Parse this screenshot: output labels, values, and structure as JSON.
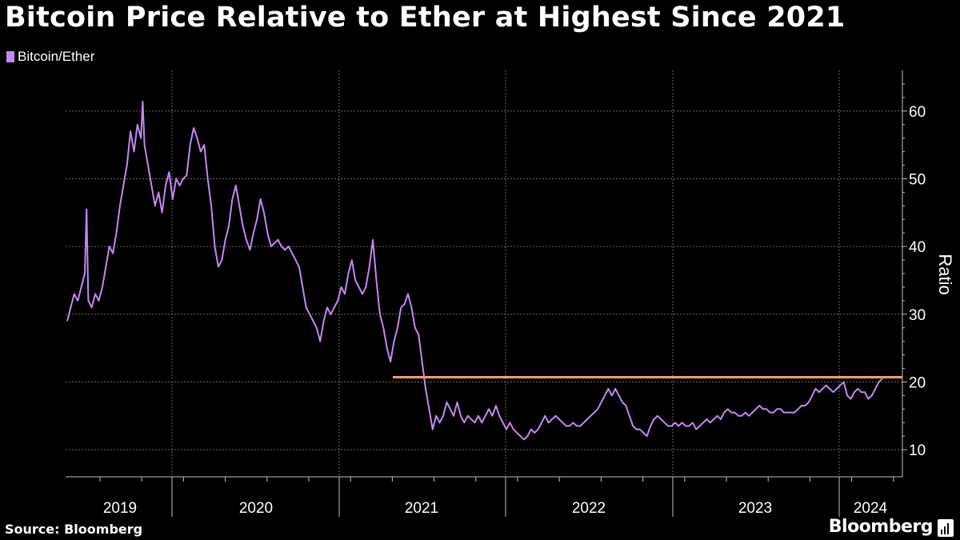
{
  "title": "Bitcoin Price Relative to Ether at Highest Since 2021",
  "legend_label": "Bitcoin/Ether",
  "source": "Source: Bloomberg",
  "brand": "Bloomberg",
  "colors": {
    "series": "#c587f3",
    "reference": "#f0a35a",
    "grid": "#6a6a6a",
    "axis": "#bfbfbf",
    "text": "#ffffff",
    "background": "#000000"
  },
  "chart_data": {
    "type": "line",
    "title": "Bitcoin Price Relative to Ether at Highest Since 2021",
    "ylabel": "Ratio",
    "xlim": [
      2018.72,
      2024.32
    ],
    "ylim": [
      6,
      66
    ],
    "y_ticks": [
      10,
      20,
      30,
      40,
      50,
      60
    ],
    "x_ticks": [
      {
        "label": "2019",
        "pos": 2019.0
      },
      {
        "label": "2020",
        "pos": 2020.0
      },
      {
        "label": "2021",
        "pos": 2021.0
      },
      {
        "label": "2022",
        "pos": 2022.0
      },
      {
        "label": "2023",
        "pos": 2023.0
      },
      {
        "label": "2024",
        "pos": 2024.0
      }
    ],
    "grid": true,
    "legend_position": "top-left",
    "reference_line": {
      "y": 20.7,
      "x_start": 2021.32,
      "x_end": 2024.32
    },
    "series": [
      {
        "name": "Bitcoin/Ether",
        "points": [
          [
            2018.72,
            29
          ],
          [
            2018.74,
            31
          ],
          [
            2018.76,
            33
          ],
          [
            2018.78,
            32
          ],
          [
            2018.8,
            34
          ],
          [
            2018.82,
            36
          ],
          [
            2018.83,
            45.5
          ],
          [
            2018.84,
            32
          ],
          [
            2018.86,
            31
          ],
          [
            2018.88,
            33
          ],
          [
            2018.9,
            32
          ],
          [
            2018.92,
            34
          ],
          [
            2018.94,
            37
          ],
          [
            2018.96,
            40
          ],
          [
            2018.98,
            39
          ],
          [
            2019.0,
            42
          ],
          [
            2019.02,
            46
          ],
          [
            2019.04,
            49
          ],
          [
            2019.06,
            52
          ],
          [
            2019.08,
            57
          ],
          [
            2019.1,
            54
          ],
          [
            2019.12,
            58
          ],
          [
            2019.14,
            56
          ],
          [
            2019.15,
            61.4
          ],
          [
            2019.16,
            55
          ],
          [
            2019.18,
            52
          ],
          [
            2019.2,
            49
          ],
          [
            2019.22,
            46
          ],
          [
            2019.24,
            48
          ],
          [
            2019.26,
            45
          ],
          [
            2019.28,
            49
          ],
          [
            2019.3,
            51
          ],
          [
            2019.32,
            47
          ],
          [
            2019.34,
            50
          ],
          [
            2019.36,
            49
          ],
          [
            2019.38,
            50
          ],
          [
            2019.4,
            50.5
          ],
          [
            2019.42,
            55
          ],
          [
            2019.44,
            57.5
          ],
          [
            2019.46,
            56
          ],
          [
            2019.48,
            54
          ],
          [
            2019.5,
            55
          ],
          [
            2019.52,
            50
          ],
          [
            2019.54,
            46
          ],
          [
            2019.56,
            40
          ],
          [
            2019.58,
            37
          ],
          [
            2019.6,
            38
          ],
          [
            2019.62,
            41
          ],
          [
            2019.64,
            43
          ],
          [
            2019.66,
            47
          ],
          [
            2019.68,
            49
          ],
          [
            2019.7,
            46
          ],
          [
            2019.72,
            43
          ],
          [
            2019.74,
            41
          ],
          [
            2019.76,
            39.5
          ],
          [
            2019.78,
            42
          ],
          [
            2019.8,
            44
          ],
          [
            2019.82,
            47
          ],
          [
            2019.84,
            45
          ],
          [
            2019.86,
            42
          ],
          [
            2019.88,
            40
          ],
          [
            2019.9,
            40.5
          ],
          [
            2019.92,
            41
          ],
          [
            2019.94,
            40
          ],
          [
            2019.96,
            39.5
          ],
          [
            2019.98,
            40
          ],
          [
            2020.0,
            39
          ],
          [
            2020.02,
            38
          ],
          [
            2020.04,
            37
          ],
          [
            2020.06,
            34
          ],
          [
            2020.08,
            31
          ],
          [
            2020.1,
            30
          ],
          [
            2020.12,
            29
          ],
          [
            2020.14,
            28
          ],
          [
            2020.16,
            26
          ],
          [
            2020.18,
            29
          ],
          [
            2020.2,
            31
          ],
          [
            2020.22,
            30
          ],
          [
            2020.24,
            31
          ],
          [
            2020.26,
            32
          ],
          [
            2020.28,
            34
          ],
          [
            2020.3,
            33
          ],
          [
            2020.32,
            36
          ],
          [
            2020.34,
            38
          ],
          [
            2020.36,
            35
          ],
          [
            2020.38,
            34
          ],
          [
            2020.4,
            33
          ],
          [
            2020.42,
            34
          ],
          [
            2020.44,
            37
          ],
          [
            2020.46,
            41
          ],
          [
            2020.48,
            35
          ],
          [
            2020.5,
            30
          ],
          [
            2020.52,
            28
          ],
          [
            2020.54,
            25
          ],
          [
            2020.56,
            23
          ],
          [
            2020.58,
            26
          ],
          [
            2020.6,
            28
          ],
          [
            2020.62,
            31
          ],
          [
            2020.64,
            31.5
          ],
          [
            2020.66,
            33
          ],
          [
            2020.68,
            31
          ],
          [
            2020.7,
            28
          ],
          [
            2020.72,
            27
          ],
          [
            2020.74,
            23
          ],
          [
            2020.76,
            19
          ],
          [
            2020.78,
            16
          ],
          [
            2020.8,
            13
          ],
          [
            2020.82,
            15
          ],
          [
            2020.84,
            14
          ],
          [
            2020.86,
            15
          ],
          [
            2020.88,
            17
          ],
          [
            2020.9,
            16
          ],
          [
            2020.92,
            15
          ],
          [
            2020.94,
            17
          ],
          [
            2020.96,
            15
          ],
          [
            2020.98,
            14
          ],
          [
            2021.0,
            15
          ],
          [
            2021.02,
            14.5
          ],
          [
            2021.04,
            14
          ],
          [
            2021.06,
            15
          ],
          [
            2021.08,
            14
          ],
          [
            2021.1,
            15
          ],
          [
            2021.12,
            16
          ],
          [
            2021.14,
            15
          ],
          [
            2021.16,
            16.5
          ],
          [
            2021.18,
            15
          ],
          [
            2021.2,
            14
          ],
          [
            2021.22,
            13
          ],
          [
            2021.24,
            14
          ],
          [
            2021.26,
            13
          ],
          [
            2021.28,
            12.5
          ],
          [
            2021.3,
            12
          ],
          [
            2021.32,
            11.5
          ],
          [
            2021.34,
            12
          ],
          [
            2021.36,
            13
          ],
          [
            2021.38,
            12.5
          ],
          [
            2021.4,
            13
          ],
          [
            2021.42,
            14
          ],
          [
            2021.44,
            15
          ],
          [
            2021.46,
            14
          ],
          [
            2021.48,
            14.5
          ],
          [
            2021.5,
            15
          ],
          [
            2021.52,
            14.5
          ],
          [
            2021.54,
            14
          ],
          [
            2021.56,
            13.5
          ],
          [
            2021.58,
            13.5
          ],
          [
            2021.6,
            14
          ],
          [
            2021.62,
            13.5
          ],
          [
            2021.64,
            13.5
          ],
          [
            2021.66,
            14
          ],
          [
            2021.68,
            14.5
          ],
          [
            2021.7,
            15
          ],
          [
            2021.72,
            15.5
          ],
          [
            2021.74,
            16
          ],
          [
            2021.76,
            17
          ],
          [
            2021.78,
            18
          ],
          [
            2021.8,
            19
          ],
          [
            2021.82,
            18
          ],
          [
            2021.84,
            19
          ],
          [
            2021.86,
            18
          ],
          [
            2021.88,
            17
          ],
          [
            2021.9,
            16.5
          ],
          [
            2021.92,
            15
          ],
          [
            2021.94,
            13.5
          ],
          [
            2021.96,
            13
          ],
          [
            2021.98,
            13
          ],
          [
            2022.0,
            12.5
          ],
          [
            2022.02,
            12
          ],
          [
            2022.04,
            13.5
          ],
          [
            2022.06,
            14.5
          ],
          [
            2022.08,
            15
          ],
          [
            2022.1,
            14.5
          ],
          [
            2022.12,
            14
          ],
          [
            2022.14,
            13.5
          ],
          [
            2022.16,
            13.5
          ],
          [
            2022.18,
            14
          ],
          [
            2022.2,
            13.5
          ],
          [
            2022.22,
            14
          ],
          [
            2022.24,
            13.5
          ],
          [
            2022.26,
            13.5
          ],
          [
            2022.28,
            14
          ],
          [
            2022.3,
            13
          ],
          [
            2022.32,
            13.5
          ],
          [
            2022.34,
            14
          ],
          [
            2022.36,
            14.5
          ],
          [
            2022.38,
            14
          ],
          [
            2022.4,
            14.5
          ],
          [
            2022.42,
            15
          ],
          [
            2022.44,
            14.5
          ],
          [
            2022.46,
            15.5
          ],
          [
            2022.48,
            16
          ],
          [
            2022.5,
            15.5
          ],
          [
            2022.52,
            15.5
          ],
          [
            2022.54,
            15
          ],
          [
            2022.56,
            15
          ],
          [
            2022.58,
            15.5
          ],
          [
            2022.6,
            15
          ],
          [
            2022.62,
            15.5
          ],
          [
            2022.64,
            16
          ],
          [
            2022.66,
            16.5
          ],
          [
            2022.68,
            16
          ],
          [
            2022.7,
            16
          ],
          [
            2022.72,
            15.5
          ],
          [
            2022.74,
            15.5
          ],
          [
            2022.76,
            16
          ],
          [
            2022.78,
            16
          ],
          [
            2022.8,
            15.5
          ],
          [
            2022.82,
            15.5
          ],
          [
            2022.84,
            15.5
          ],
          [
            2022.86,
            15.5
          ],
          [
            2022.88,
            16
          ],
          [
            2022.9,
            16.5
          ],
          [
            2022.92,
            16.5
          ],
          [
            2022.94,
            17
          ],
          [
            2022.96,
            18
          ],
          [
            2022.98,
            19
          ],
          [
            2023.0,
            18.5
          ],
          [
            2023.02,
            19
          ],
          [
            2023.04,
            19.5
          ],
          [
            2023.06,
            19
          ],
          [
            2023.08,
            18.5
          ],
          [
            2023.1,
            19
          ],
          [
            2023.12,
            19.5
          ],
          [
            2023.14,
            20
          ],
          [
            2023.16,
            18
          ],
          [
            2023.18,
            17.5
          ],
          [
            2023.2,
            18.5
          ],
          [
            2023.22,
            19
          ],
          [
            2023.24,
            18.5
          ],
          [
            2023.26,
            18.5
          ],
          [
            2023.28,
            17.5
          ],
          [
            2023.3,
            18
          ],
          [
            2023.32,
            19
          ],
          [
            2023.34,
            20
          ],
          [
            2023.36,
            20.5
          ]
        ]
      }
    ]
  }
}
